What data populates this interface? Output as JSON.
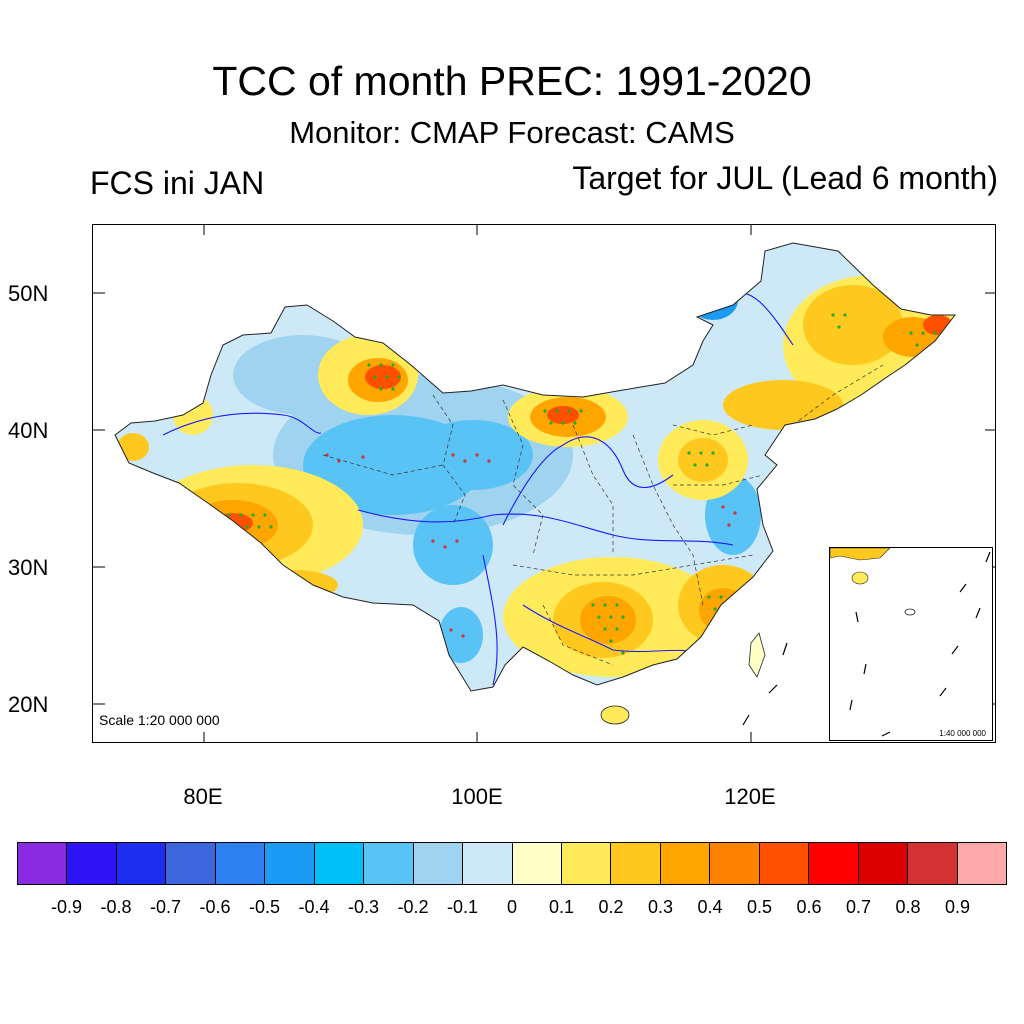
{
  "title": "TCC of month PREC: 1991-2020",
  "subtitle": "Monitor: CMAP   Forecast: CAMS",
  "left_label": "FCS ini JAN",
  "right_label": "Target for JUL (Lead 6 month)",
  "map": {
    "scale_main": "Scale 1:20 000 000",
    "scale_inset": "1:40 000 000",
    "lat_labels": [
      "50N",
      "40N",
      "30N",
      "20N"
    ],
    "lon_labels": [
      "80E",
      "100E",
      "120E"
    ],
    "lat_range": [
      17,
      55
    ],
    "lon_range": [
      72,
      138
    ],
    "stipple_color": "#22aa22",
    "boundary_color": "#333333",
    "river_color": "#1a1aff"
  },
  "colorbar": {
    "colors": [
      "#8a2be2",
      "#2f14f5",
      "#1e2ef0",
      "#3d65dc",
      "#2e7ff0",
      "#1c9bf5",
      "#00c0fa",
      "#5ac3f5",
      "#9fd3f0",
      "#cde9f7",
      "#ffffc8",
      "#ffeb5a",
      "#ffc81e",
      "#ffa500",
      "#ff8200",
      "#ff5000",
      "#ff0000",
      "#dc0000",
      "#d23232",
      "#ffaaaa"
    ],
    "labels": [
      "-0.9",
      "-0.8",
      "-0.7",
      "-0.6",
      "-0.5",
      "-0.4",
      "-0.3",
      "-0.2",
      "-0.1",
      "0",
      "0.1",
      "0.2",
      "0.3",
      "0.4",
      "0.5",
      "0.6",
      "0.7",
      "0.8",
      "0.9"
    ]
  }
}
